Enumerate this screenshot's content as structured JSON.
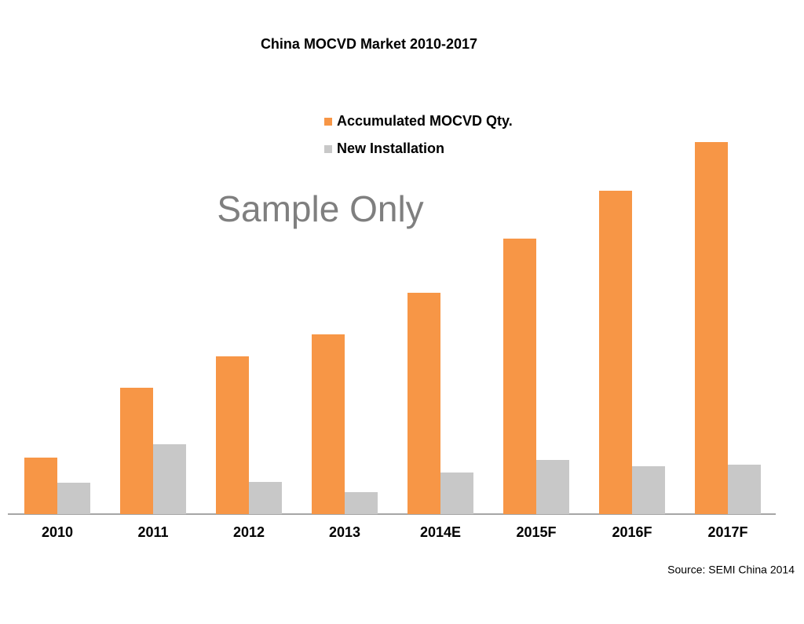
{
  "chart_data": {
    "type": "bar",
    "title": "China MOCVD Market 2010-2017",
    "annotations": [
      "Sample Only",
      "Source: SEMI China 2014"
    ],
    "categories": [
      "2010",
      "2011",
      "2012",
      "2013",
      "2014E",
      "2015F",
      "2016F",
      "2017F"
    ],
    "series": [
      {
        "name": "Accumulated MOCVD Qty.",
        "color": "#f79646",
        "values": [
          72,
          161,
          201,
          229,
          282,
          351,
          412,
          474
        ]
      },
      {
        "name": "New Installation",
        "color": "#c8c8c8",
        "values": [
          40,
          89,
          41,
          28,
          53,
          69,
          61,
          63
        ]
      }
    ]
  }
}
